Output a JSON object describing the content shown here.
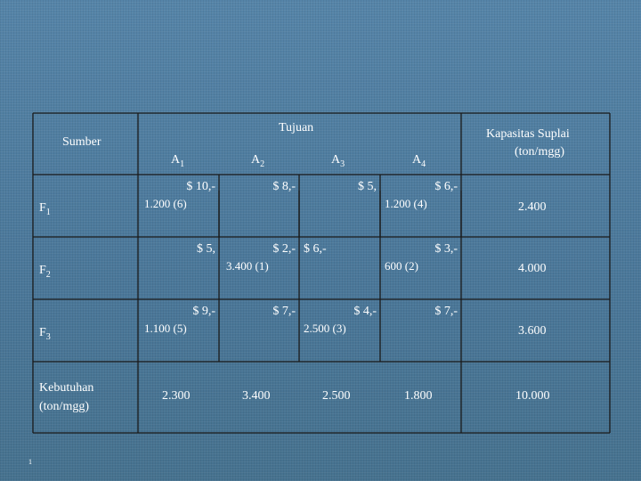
{
  "header": {
    "source_label": "Sumber",
    "destination_label": "Tujuan",
    "capacity_label_line1": "Kapasitas Suplai",
    "capacity_label_line2": "(ton/mgg)"
  },
  "destinations": [
    {
      "letter": "A",
      "index": "1"
    },
    {
      "letter": "A",
      "index": "2"
    },
    {
      "letter": "A",
      "index": "3"
    },
    {
      "letter": "A",
      "index": "4"
    }
  ],
  "rows": [
    {
      "source_letter": "F",
      "source_index": "1",
      "costs": [
        "$ 10,-",
        "$ 8,-",
        "$ 5,",
        "$ 6,-"
      ],
      "allocations": [
        "1.200 (6)",
        "",
        "",
        "1.200 (4)"
      ],
      "capacity": "2.400"
    },
    {
      "source_letter": "F",
      "source_index": "2",
      "costs": [
        "$ 5,",
        "$ 2,-",
        "$ 6,-",
        "$ 3,-"
      ],
      "allocations": [
        "",
        "3.400 (1)",
        "",
        "600 (2)"
      ],
      "capacity": "4.000"
    },
    {
      "source_letter": "F",
      "source_index": "3",
      "costs": [
        "$ 9,-",
        "$ 7,-",
        "$ 4,-",
        "$ 7,-"
      ],
      "allocations": [
        "1.100 (5)",
        "",
        "2.500 (3)",
        ""
      ],
      "capacity": "3.600"
    }
  ],
  "demand": {
    "label_line1": "Kebutuhan",
    "label_line2": "(ton/mgg)",
    "values": [
      "2.300",
      "3.400",
      "2.500",
      "1.800"
    ],
    "total": "10.000"
  },
  "slide_number": "1"
}
